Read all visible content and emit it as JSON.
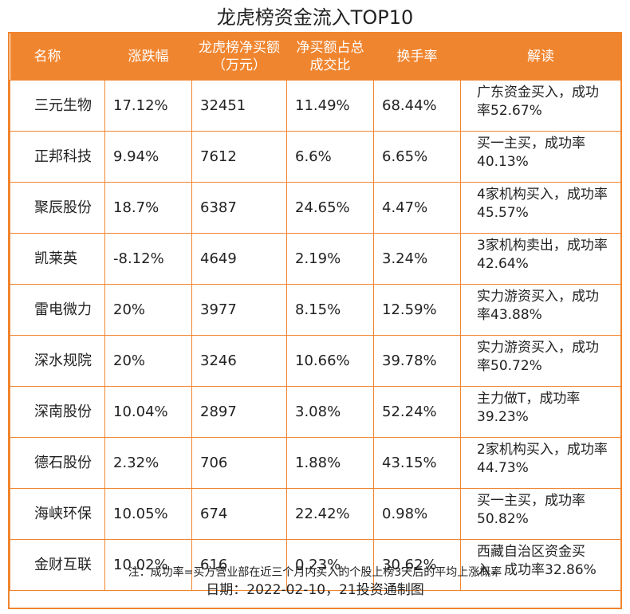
{
  "title": "龙虎榜资金流入TOP10",
  "headers": [
    "名称",
    "涨跌幅",
    "龙虎榜净买额（万元）",
    "净买额占总成交比",
    "换手率",
    "解读"
  ],
  "rows": [
    {
      "name": "三元生物",
      "change": "17.12%",
      "net_buy": "32451",
      "ratio": "11.49%",
      "turnover": "68.44%",
      "note": "广东资金买入，成功率52.67%"
    },
    {
      "name": "正邦科技",
      "change": "9.94%",
      "net_buy": "7612",
      "ratio": "6.6%",
      "turnover": "6.65%",
      "note": "买一主买，成功率40.13%"
    },
    {
      "name": "聚辰股份",
      "change": "18.7%",
      "net_buy": "6387",
      "ratio": "24.65%",
      "turnover": "4.47%",
      "note": "4家机构买入，成功率45.57%"
    },
    {
      "name": "凯莱英",
      "change": "-8.12%",
      "net_buy": "4649",
      "ratio": "2.19%",
      "turnover": "3.24%",
      "note": "3家机构卖出，成功率42.64%"
    },
    {
      "name": "雷电微力",
      "change": "20%",
      "net_buy": "3977",
      "ratio": "8.15%",
      "turnover": "12.59%",
      "note": "实力游资买入，成功率43.88%"
    },
    {
      "name": "深水规院",
      "change": "20%",
      "net_buy": "3246",
      "ratio": "10.66%",
      "turnover": "39.78%",
      "note": "实力游资买入，成功率50.72%"
    },
    {
      "name": "深南股份",
      "change": "10.04%",
      "net_buy": "2897",
      "ratio": "3.08%",
      "turnover": "52.24%",
      "note": "主力做T，成功率39.23%"
    },
    {
      "name": "德石股份",
      "change": "2.32%",
      "net_buy": "706",
      "ratio": "1.88%",
      "turnover": "43.15%",
      "note": "2家机构买入，成功率44.73%"
    },
    {
      "name": "海峡环保",
      "change": "10.05%",
      "net_buy": "674",
      "ratio": "22.42%",
      "turnover": "0.98%",
      "note": "买一主买，成功率50.82%"
    },
    {
      "name": "金财互联",
      "change": "10.02%",
      "net_buy": "616",
      "ratio": "0.23%",
      "turnover": "30.62%",
      "note": "西藏自治区资金买入，成功率32.86%"
    }
  ],
  "footnote": "注：成功率=买方营业部在近三个月内买入的个股上榜3天后的平均上涨概率",
  "date_line": "日期：2022-02-10，21投资通制图",
  "colors": {
    "accent": "#f0852f",
    "header_text": "#ffffff"
  }
}
